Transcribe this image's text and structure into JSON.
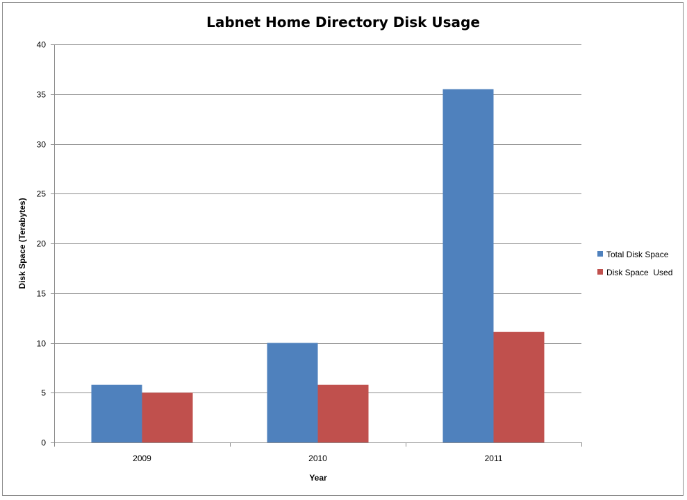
{
  "chart_data": {
    "type": "bar",
    "title": "Labnet Home Directory Disk Usage",
    "xlabel": "Year",
    "ylabel": "Disk Space (Terabytes)",
    "categories": [
      "2009",
      "2010",
      "2011"
    ],
    "series": [
      {
        "name": "Total Disk Space",
        "values": [
          5.8,
          10,
          35.5
        ],
        "color": "#4f81bd"
      },
      {
        "name": "Disk Space  Used",
        "values": [
          5,
          5.8,
          11.1
        ],
        "color": "#c0504d"
      }
    ],
    "ylim": [
      0,
      40
    ],
    "yticks": [
      "0",
      "5",
      "10",
      "15",
      "20",
      "25",
      "30",
      "35",
      "40"
    ],
    "grid": true,
    "legend": "right"
  }
}
